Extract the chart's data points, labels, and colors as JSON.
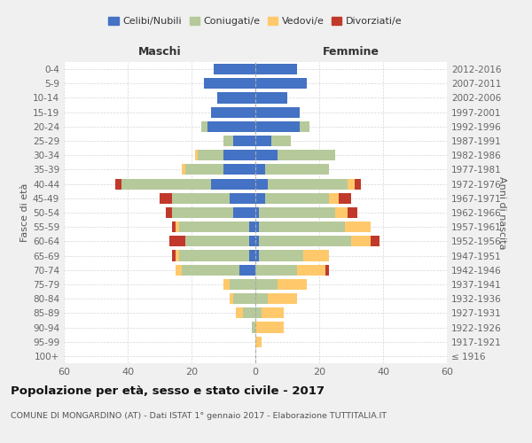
{
  "age_groups": [
    "100+",
    "95-99",
    "90-94",
    "85-89",
    "80-84",
    "75-79",
    "70-74",
    "65-69",
    "60-64",
    "55-59",
    "50-54",
    "45-49",
    "40-44",
    "35-39",
    "30-34",
    "25-29",
    "20-24",
    "15-19",
    "10-14",
    "5-9",
    "0-4"
  ],
  "birth_years": [
    "≤ 1916",
    "1917-1921",
    "1922-1926",
    "1927-1931",
    "1932-1936",
    "1937-1941",
    "1942-1946",
    "1947-1951",
    "1952-1956",
    "1957-1961",
    "1962-1966",
    "1967-1971",
    "1972-1976",
    "1977-1981",
    "1982-1986",
    "1987-1991",
    "1992-1996",
    "1997-2001",
    "2002-2006",
    "2007-2011",
    "2012-2016"
  ],
  "male": {
    "celibi": [
      0,
      0,
      0,
      0,
      0,
      0,
      5,
      2,
      2,
      2,
      7,
      8,
      14,
      10,
      10,
      7,
      15,
      14,
      12,
      16,
      13
    ],
    "coniugati": [
      0,
      0,
      1,
      4,
      7,
      8,
      18,
      22,
      20,
      22,
      19,
      18,
      28,
      12,
      8,
      3,
      2,
      0,
      0,
      0,
      0
    ],
    "vedovi": [
      0,
      0,
      0,
      2,
      1,
      2,
      2,
      1,
      0,
      1,
      0,
      0,
      0,
      1,
      1,
      0,
      0,
      0,
      0,
      0,
      0
    ],
    "divorziati": [
      0,
      0,
      0,
      0,
      0,
      0,
      0,
      1,
      5,
      1,
      2,
      4,
      2,
      0,
      0,
      0,
      0,
      0,
      0,
      0,
      0
    ]
  },
  "female": {
    "nubili": [
      0,
      0,
      0,
      0,
      0,
      0,
      0,
      1,
      1,
      1,
      1,
      3,
      4,
      3,
      7,
      5,
      14,
      14,
      10,
      16,
      13
    ],
    "coniugate": [
      0,
      0,
      0,
      2,
      4,
      7,
      13,
      14,
      29,
      27,
      24,
      20,
      25,
      20,
      18,
      6,
      3,
      0,
      0,
      0,
      0
    ],
    "vedove": [
      0,
      2,
      9,
      7,
      9,
      9,
      9,
      8,
      6,
      8,
      4,
      3,
      2,
      0,
      0,
      0,
      0,
      0,
      0,
      0,
      0
    ],
    "divorziate": [
      0,
      0,
      0,
      0,
      0,
      0,
      1,
      0,
      3,
      0,
      3,
      4,
      2,
      0,
      0,
      0,
      0,
      0,
      0,
      0,
      0
    ]
  },
  "colors": {
    "celibi": "#4472c4",
    "coniugati": "#b5c99a",
    "vedovi": "#ffc96b",
    "divorziati": "#c0392b"
  },
  "xlim": 60,
  "title": "Popolazione per età, sesso e stato civile - 2017",
  "subtitle": "COMUNE DI MONGARDINO (AT) - Dati ISTAT 1° gennaio 2017 - Elaborazione TUTTITALIA.IT",
  "ylabel_left": "Fasce di età",
  "ylabel_right": "Anni di nascita",
  "xlabel_male": "Maschi",
  "xlabel_female": "Femmine",
  "legend_labels": [
    "Celibi/Nubili",
    "Coniugati/e",
    "Vedovi/e",
    "Divorziati/e"
  ],
  "bg_color": "#f0f0f0",
  "plot_bg": "#ffffff"
}
